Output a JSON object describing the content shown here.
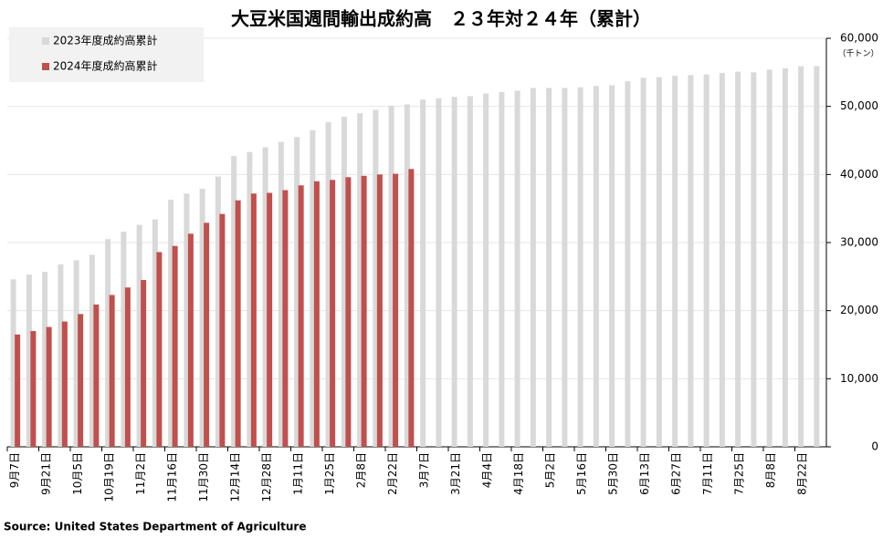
{
  "chart_data": {
    "type": "bar",
    "title": "大豆米国週間輸出成約高　２３年対２４年（累計）",
    "y_unit_label": "（千トン）",
    "source": "Source: United States Department of Agriculture",
    "categories": [
      "9月7日",
      null,
      "9月21日",
      null,
      "10月5日",
      null,
      "10月19日",
      null,
      "11月2日",
      null,
      "11月16日",
      null,
      "11月30日",
      null,
      "12月14日",
      null,
      "12月28日",
      null,
      "1月11日",
      null,
      "1月25日",
      null,
      "2月8日",
      null,
      "2月22日",
      null,
      "3月7日",
      null,
      "3月21日",
      null,
      "4月4日",
      null,
      "4月18日",
      null,
      "5月2日",
      null,
      "5月16日",
      null,
      "5月30日",
      null,
      "6月13日",
      null,
      "6月27日",
      null,
      "7月11日",
      null,
      "7月25日",
      null,
      "8月8日",
      null,
      "8月22日",
      null
    ],
    "series": [
      {
        "name": "2023年度成約高累計",
        "color": "#d9d9d9",
        "values": [
          24600,
          25300,
          25700,
          26800,
          27400,
          28200,
          30500,
          31600,
          32600,
          33400,
          36300,
          37200,
          37900,
          39700,
          42700,
          43300,
          44000,
          44800,
          45500,
          46500,
          47700,
          48500,
          49000,
          49500,
          50100,
          50300,
          51000,
          51200,
          51400,
          51500,
          51900,
          52100,
          52300,
          52700,
          52700,
          52700,
          52800,
          53000,
          53100,
          53700,
          54200,
          54300,
          54500,
          54600,
          54700,
          54900,
          55100,
          55000,
          55400,
          55600,
          55900,
          55900
        ]
      },
      {
        "name": "2024年度成約高累計",
        "color": "#c0504d",
        "values": [
          16500,
          17000,
          17600,
          18400,
          19500,
          20900,
          22300,
          23400,
          24500,
          28600,
          29500,
          31300,
          32900,
          34200,
          36200,
          37200,
          37300,
          37700,
          38400,
          39000,
          39200,
          39600,
          39800,
          40000,
          40100,
          40800,
          null,
          null,
          null,
          null,
          null,
          null,
          null,
          null,
          null,
          null,
          null,
          null,
          null,
          null,
          null,
          null,
          null,
          null,
          null,
          null,
          null,
          null,
          null,
          null,
          null,
          null
        ]
      }
    ],
    "ylim": [
      0,
      60000
    ],
    "yticks": [
      0,
      {
        "value": 10000,
        "label": "10,000"
      },
      {
        "value": 20000,
        "label": "20,000"
      },
      {
        "value": 30000,
        "label": "30,000"
      },
      {
        "value": 40000,
        "label": "40,000"
      },
      {
        "value": 50000,
        "label": "50,000"
      },
      {
        "value": 60000,
        "label": "60,000"
      }
    ],
    "grid": true,
    "legend": "top-left"
  }
}
